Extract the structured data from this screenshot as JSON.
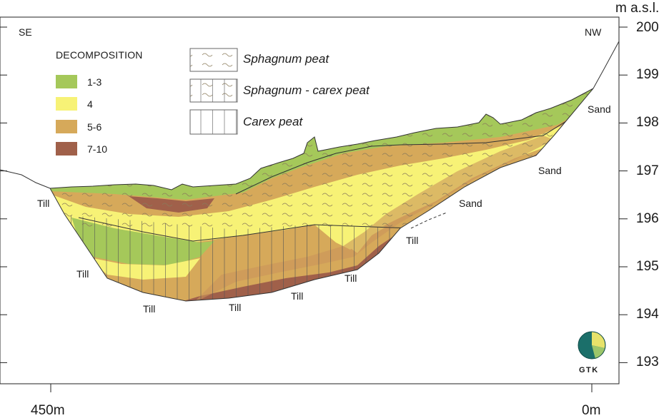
{
  "figure": {
    "unit_label": "m a.s.l.",
    "side_left": "SE",
    "side_right": "NW",
    "distance_left": "450m",
    "distance_right": "0m",
    "elevation_ticks": [
      "200",
      "199",
      "198",
      "197",
      "196",
      "195",
      "194",
      "193"
    ]
  },
  "legend": {
    "title": "DECOMPOSITION",
    "classes": [
      {
        "label": "1-3",
        "color": "#a5c85a"
      },
      {
        "label": "4",
        "color": "#f7f276"
      },
      {
        "label": "5-6",
        "color": "#d6a95a"
      },
      {
        "label": "7-10",
        "color": "#a0604a"
      }
    ],
    "peat_types": [
      {
        "pre": "Sphagnum",
        "post": " peat",
        "pattern": "waves"
      },
      {
        "pre": "Sphagnum - carex",
        "post": " peat",
        "pattern": "waves-lines"
      },
      {
        "pre": "Carex",
        "post": " peat",
        "pattern": "lines"
      }
    ]
  },
  "annotations": {
    "till": [
      "Till",
      "Till",
      "Till",
      "Till",
      "Till",
      "Till",
      "Till"
    ],
    "sand": [
      "Sand",
      "Sand",
      "Sand"
    ]
  },
  "logo": {
    "text": "GTK"
  }
}
